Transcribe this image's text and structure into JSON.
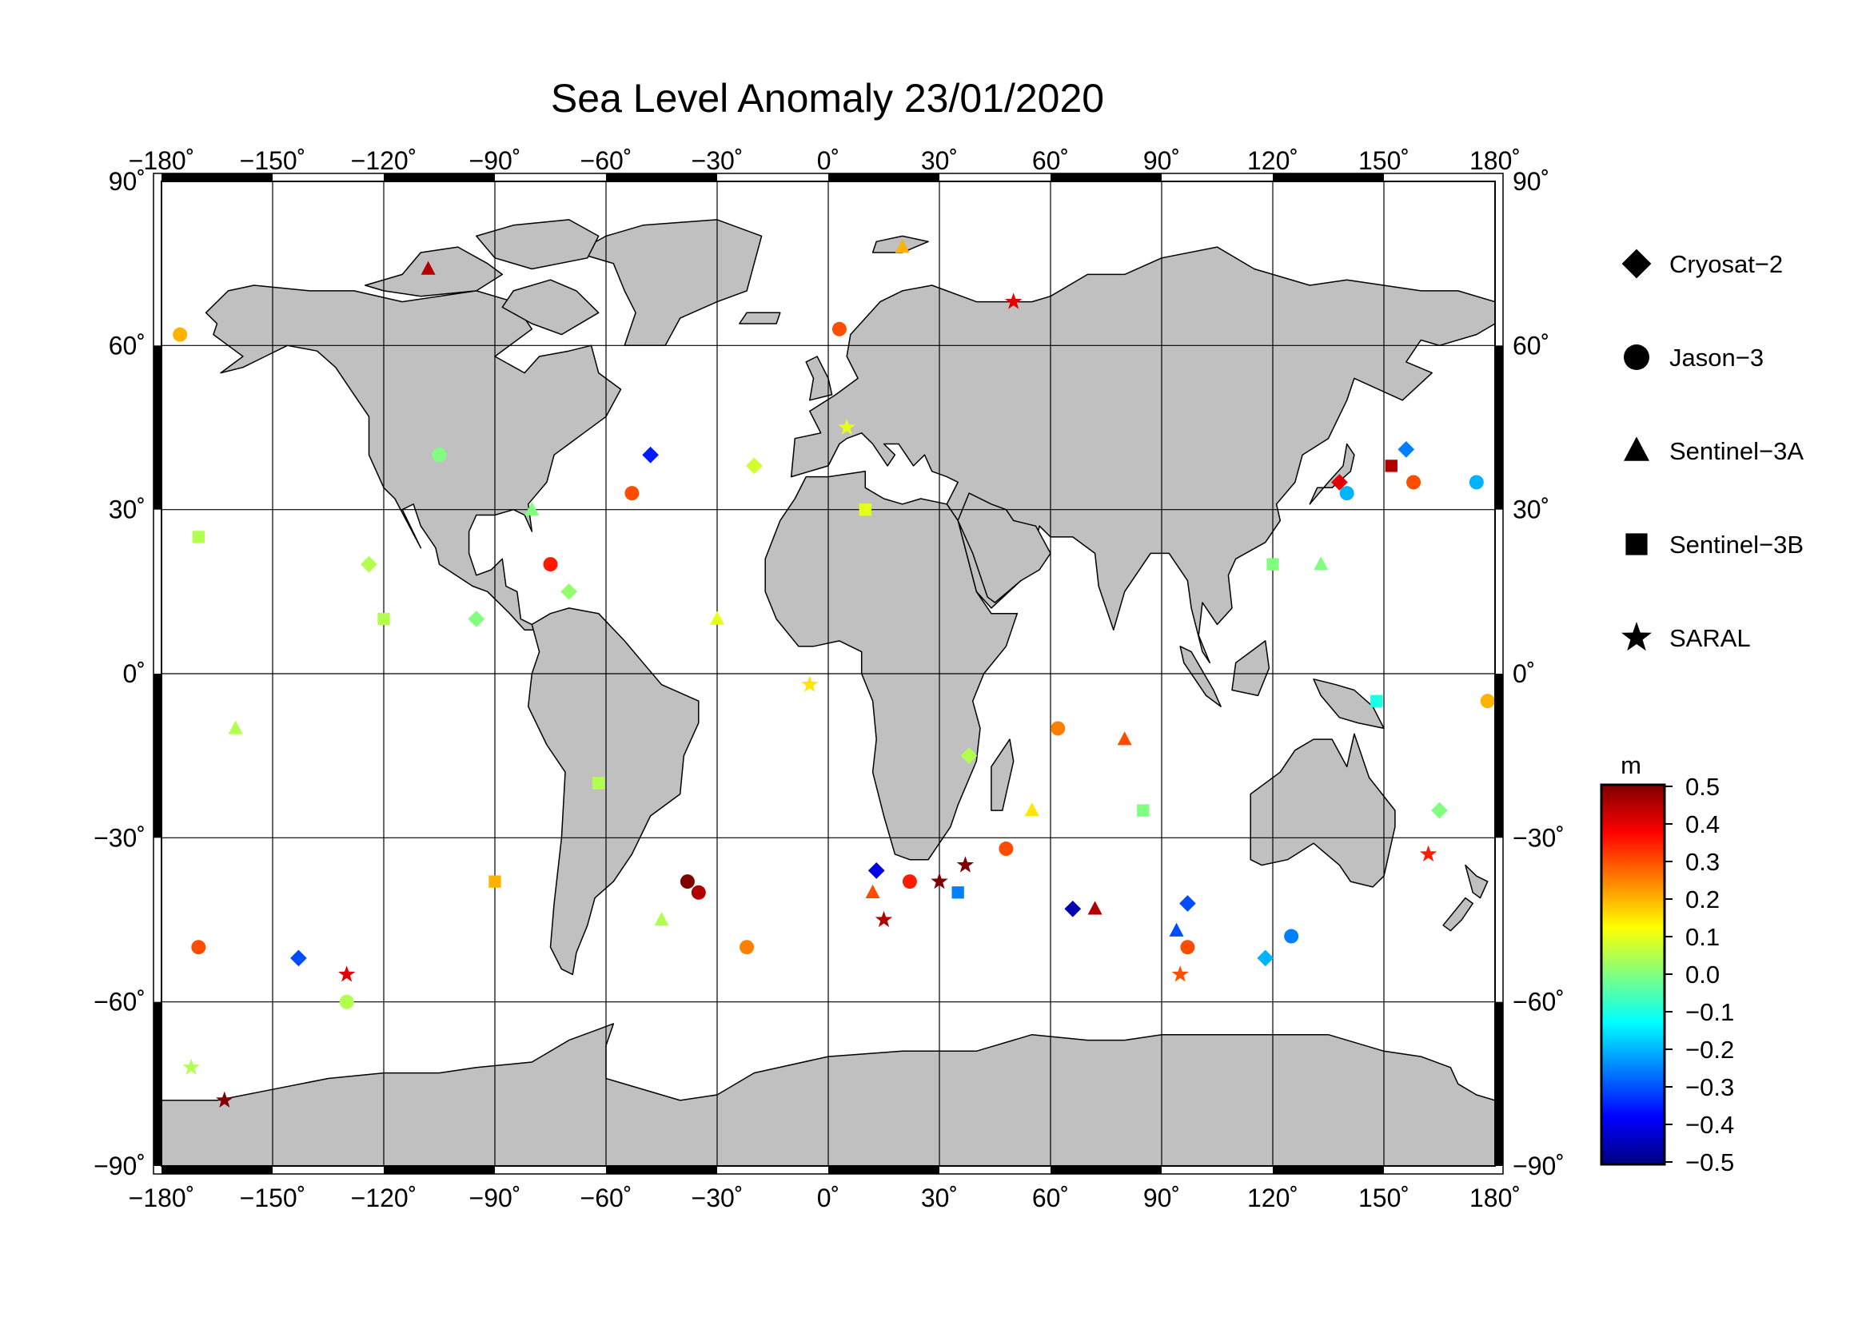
{
  "title": "Sea Level Anomaly 23/01/2020",
  "map": {
    "projection": "equirectangular",
    "lon_range": [
      -180,
      180
    ],
    "lat_range": [
      -90,
      90
    ],
    "grid": true,
    "land_color": "#c0c0c0",
    "ocean_color": "#ffffff",
    "lon_ticks": [
      -180,
      -150,
      -120,
      -90,
      -60,
      -30,
      0,
      30,
      60,
      90,
      120,
      150,
      180
    ],
    "lat_ticks": [
      -90,
      -60,
      -30,
      0,
      30,
      60,
      90
    ],
    "lon_tick_labels": [
      "−180˚",
      "−150˚",
      "−120˚",
      "−90˚",
      "−60˚",
      "−30˚",
      "0˚",
      "30˚",
      "60˚",
      "90˚",
      "120˚",
      "150˚",
      "180˚"
    ],
    "lat_tick_labels": [
      "−90˚",
      "−60˚",
      "−30˚",
      "0˚",
      "30˚",
      "60˚",
      "90˚"
    ]
  },
  "legend": {
    "placement": "right",
    "items": [
      {
        "label": "Cryosat−2",
        "symbol": "diamond"
      },
      {
        "label": "Jason−3",
        "symbol": "circle"
      },
      {
        "label": "Sentinel−3A",
        "symbol": "triangle"
      },
      {
        "label": "Sentinel−3B",
        "symbol": "square"
      },
      {
        "label": "SARAL",
        "symbol": "star"
      }
    ]
  },
  "colorbar": {
    "unit": "m",
    "range": [
      -0.5,
      0.5
    ],
    "tick_labels": [
      "0.5",
      "0.4",
      "0.3",
      "0.2",
      "0.1",
      "0.0",
      "−0.1",
      "−0.2",
      "−0.3",
      "−0.4",
      "−0.5"
    ],
    "colors": [
      "#7f0000",
      "#ff0000",
      "#ff8000",
      "#ffff00",
      "#80ff80",
      "#00ffff",
      "#0080ff",
      "#0000ff",
      "#00007f"
    ]
  },
  "chart_data": {
    "type": "scatter",
    "title": "Sea Level Anomaly 23/01/2020",
    "x_axis": "longitude",
    "y_axis": "latitude",
    "xlim": [
      -180,
      180
    ],
    "ylim": [
      -90,
      90
    ],
    "value_unit": "m",
    "value_range": [
      -0.5,
      0.5
    ],
    "series": [
      {
        "name": "Cryosat−2",
        "symbol": "diamond",
        "points": [
          [
            -143,
            -52,
            -0.3
          ],
          [
            -124,
            20,
            0.05
          ],
          [
            -95,
            10,
            0.0
          ],
          [
            -70,
            15,
            0.02
          ],
          [
            -48,
            40,
            -0.35
          ],
          [
            -20,
            38,
            0.08
          ],
          [
            13,
            -36,
            -0.4
          ],
          [
            38,
            -15,
            0.05
          ],
          [
            66,
            -43,
            -0.45
          ],
          [
            97,
            -42,
            -0.3
          ],
          [
            118,
            -52,
            -0.2
          ],
          [
            138,
            35,
            0.4
          ],
          [
            156,
            41,
            -0.25
          ],
          [
            165,
            -25,
            0.0
          ]
        ]
      },
      {
        "name": "Jason−3",
        "symbol": "circle",
        "points": [
          [
            -175,
            62,
            0.2
          ],
          [
            -170,
            -50,
            0.3
          ],
          [
            -130,
            -60,
            0.05
          ],
          [
            -105,
            40,
            0.0
          ],
          [
            -75,
            20,
            0.35
          ],
          [
            -53,
            33,
            0.3
          ],
          [
            -38,
            -38,
            0.5
          ],
          [
            -35,
            -40,
            0.45
          ],
          [
            -22,
            -50,
            0.25
          ],
          [
            3,
            63,
            0.3
          ],
          [
            22,
            -38,
            0.35
          ],
          [
            48,
            -32,
            0.3
          ],
          [
            62,
            -10,
            0.25
          ],
          [
            97,
            -50,
            0.3
          ],
          [
            125,
            -48,
            -0.25
          ],
          [
            140,
            33,
            -0.2
          ],
          [
            158,
            35,
            0.3
          ],
          [
            175,
            35,
            -0.2
          ],
          [
            178,
            -5,
            0.2
          ]
        ]
      },
      {
        "name": "Sentinel−3A",
        "symbol": "triangle",
        "points": [
          [
            -108,
            74,
            0.45
          ],
          [
            -80,
            30,
            0.0
          ],
          [
            -45,
            -45,
            0.05
          ],
          [
            12,
            -40,
            0.3
          ],
          [
            20,
            78,
            0.2
          ],
          [
            72,
            -43,
            0.45
          ],
          [
            80,
            -12,
            0.3
          ],
          [
            94,
            -47,
            -0.3
          ],
          [
            133,
            20,
            0.0
          ],
          [
            -160,
            -10,
            0.05
          ],
          [
            -30,
            10,
            0.1
          ],
          [
            55,
            -25,
            0.15
          ]
        ]
      },
      {
        "name": "Sentinel−3B",
        "symbol": "square",
        "points": [
          [
            -120,
            10,
            0.05
          ],
          [
            -90,
            -38,
            0.2
          ],
          [
            -62,
            -20,
            0.05
          ],
          [
            35,
            -40,
            -0.25
          ],
          [
            85,
            -25,
            0.0
          ],
          [
            120,
            20,
            0.0
          ],
          [
            148,
            -5,
            -0.1
          ],
          [
            152,
            38,
            0.45
          ],
          [
            -170,
            25,
            0.05
          ],
          [
            10,
            30,
            0.1
          ]
        ]
      },
      {
        "name": "SARAL",
        "symbol": "star",
        "points": [
          [
            -163,
            -78,
            0.5
          ],
          [
            -130,
            -55,
            0.4
          ],
          [
            15,
            -45,
            0.45
          ],
          [
            30,
            -38,
            0.5
          ],
          [
            37,
            -35,
            0.5
          ],
          [
            50,
            68,
            0.4
          ],
          [
            95,
            -55,
            0.3
          ],
          [
            162,
            -33,
            0.35
          ],
          [
            -172,
            -72,
            0.05
          ],
          [
            5,
            45,
            0.1
          ],
          [
            -5,
            -2,
            0.15
          ]
        ]
      }
    ]
  }
}
